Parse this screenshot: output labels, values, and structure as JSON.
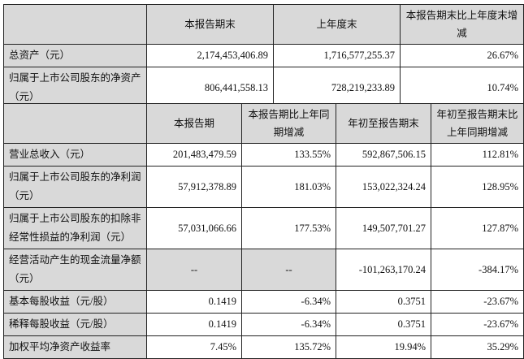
{
  "table1": {
    "headers": [
      "",
      "本报告期末",
      "上年度末",
      "本报告期末比上年度末增减"
    ],
    "rows": [
      {
        "label": "总资产（元）",
        "values": [
          "2,174,453,406.89",
          "1,716,577,255.37",
          "26.67%"
        ]
      },
      {
        "label": "归属于上市公司股东的净资产（元）",
        "values": [
          "806,441,558.13",
          "728,219,233.89",
          "10.74%"
        ]
      }
    ]
  },
  "table2": {
    "headers": [
      "",
      "本报告期",
      "本报告期比上年同期增减",
      "年初至报告期末",
      "年初至报告期末比上年同期增减"
    ],
    "rows": [
      {
        "label": "营业总收入（元）",
        "values": [
          "201,483,479.59",
          "133.55%",
          "592,867,506.15",
          "112.81%"
        ]
      },
      {
        "label": "归属于上市公司股东的净利润（元）",
        "values": [
          "57,912,378.89",
          "181.03%",
          "153,022,324.24",
          "128.95%"
        ]
      },
      {
        "label": "归属于上市公司股东的扣除非经常性损益的净利润（元）",
        "values": [
          "57,031,066.66",
          "177.53%",
          "149,507,701.27",
          "127.87%"
        ]
      },
      {
        "label": "经营活动产生的现金流量净额（元）",
        "values": [
          "--",
          "--",
          "-101,263,170.24",
          "-384.17%"
        ]
      },
      {
        "label": "基本每股收益（元/股）",
        "values": [
          "0.1419",
          "-6.34%",
          "0.3751",
          "-23.67%"
        ]
      },
      {
        "label": "稀释每股收益（元/股）",
        "values": [
          "0.1419",
          "-6.34%",
          "0.3751",
          "-23.67%"
        ]
      },
      {
        "label": "加权平均净资产收益率",
        "values": [
          "7.45%",
          "135.72%",
          "19.94%",
          "35.29%"
        ]
      }
    ]
  },
  "colors": {
    "header_bg": "#d9d9d9",
    "border": "#222222"
  }
}
